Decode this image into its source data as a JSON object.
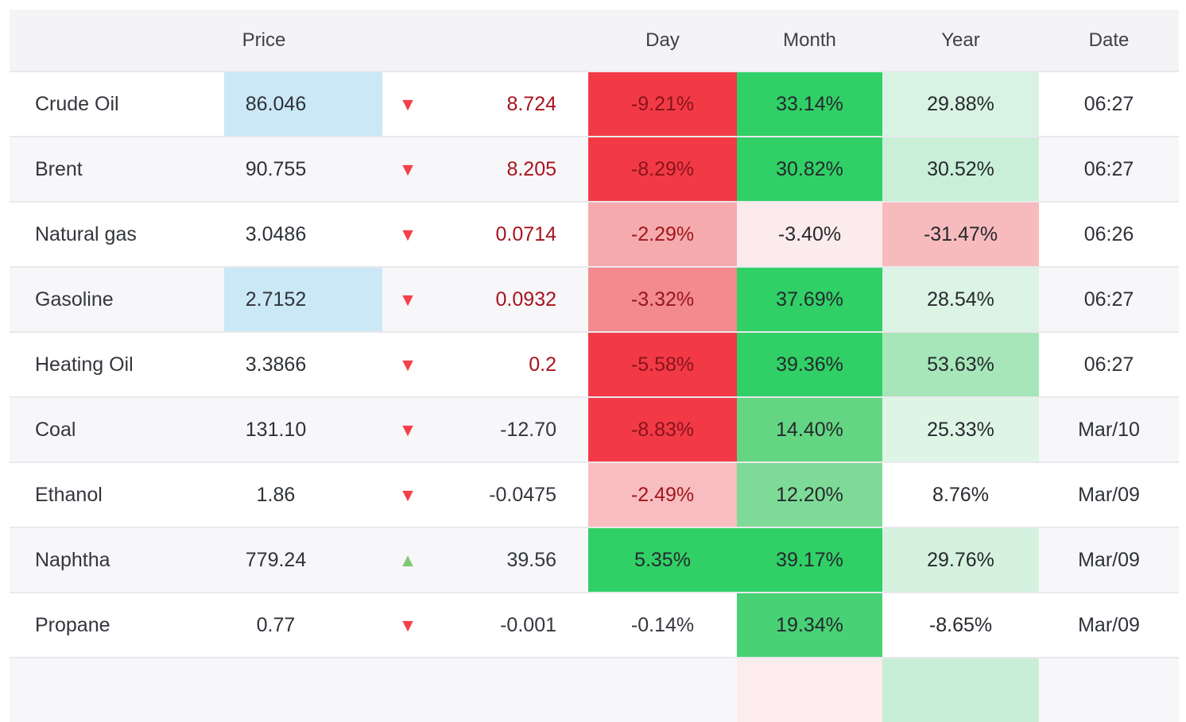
{
  "table": {
    "headers": {
      "name": "",
      "price": "Price",
      "arrow": "",
      "change": "",
      "day": "Day",
      "month": "Month",
      "year": "Year",
      "date": "Date"
    },
    "colors": {
      "header_bg": "#f4f4f6",
      "alt_row_bg": "#f7f7f9",
      "row_border": "#e9e9ec",
      "price_highlight_blue": "#cbe8f6",
      "strong_red": "#f23a46",
      "strong_green": "#30d066",
      "down_arrow": "#f4404a",
      "up_arrow": "#7fc972"
    },
    "rows": [
      {
        "name": "Crude Oil",
        "price": "86.046",
        "price_bg": "#cbe8f6",
        "arrow": "down",
        "change": "8.724",
        "change_fg": "#a8131d",
        "day": {
          "text": "-9.21%",
          "bg": "#f23a46",
          "fg": "#87141b"
        },
        "month": {
          "text": "33.14%",
          "bg": "#30d066",
          "fg": "#26292e"
        },
        "year": {
          "text": "29.88%",
          "bg": "#d9f3e2",
          "fg": "#26292e"
        },
        "date": "06:27"
      },
      {
        "name": "Brent",
        "price": "90.755",
        "price_bg": null,
        "arrow": "down",
        "change": "8.205",
        "change_fg": "#a8131d",
        "day": {
          "text": "-8.29%",
          "bg": "#f23a46",
          "fg": "#87141b"
        },
        "month": {
          "text": "30.82%",
          "bg": "#30d066",
          "fg": "#26292e"
        },
        "year": {
          "text": "30.52%",
          "bg": "#c9f0d7",
          "fg": "#26292e"
        },
        "date": "06:27"
      },
      {
        "name": "Natural gas",
        "price": "3.0486",
        "price_bg": null,
        "arrow": "down",
        "change": "0.0714",
        "change_fg": "#a8131d",
        "day": {
          "text": "-2.29%",
          "bg": "#f5abae",
          "fg": "#a21519"
        },
        "month": {
          "text": "-3.40%",
          "bg": "#fcebec",
          "fg": "#26292e"
        },
        "year": {
          "text": "-31.47%",
          "bg": "#f7bbbe",
          "fg": "#26292e"
        },
        "date": "06:26"
      },
      {
        "name": "Gasoline",
        "price": "2.7152",
        "price_bg": "#cbe8f6",
        "arrow": "down",
        "change": "0.0932",
        "change_fg": "#a8131d",
        "day": {
          "text": "-3.32%",
          "bg": "#f28a90",
          "fg": "#96151b"
        },
        "month": {
          "text": "37.69%",
          "bg": "#30d066",
          "fg": "#26292e"
        },
        "year": {
          "text": "28.54%",
          "bg": "#dcf4e4",
          "fg": "#26292e"
        },
        "date": "06:27"
      },
      {
        "name": "Heating Oil",
        "price": "3.3866",
        "price_bg": null,
        "arrow": "down",
        "change": "0.2",
        "change_fg": "#a8131d",
        "day": {
          "text": "-5.58%",
          "bg": "#f23a46",
          "fg": "#87141b"
        },
        "month": {
          "text": "39.36%",
          "bg": "#30d066",
          "fg": "#26292e"
        },
        "year": {
          "text": "53.63%",
          "bg": "#a6e6b8",
          "fg": "#26292e"
        },
        "date": "06:27"
      },
      {
        "name": "Coal",
        "price": "131.10",
        "price_bg": null,
        "arrow": "down",
        "change": "-12.70",
        "change_fg": "#33373d",
        "day": {
          "text": "-8.83%",
          "bg": "#f23a46",
          "fg": "#87141b"
        },
        "month": {
          "text": "14.40%",
          "bg": "#64d683",
          "fg": "#26292e"
        },
        "year": {
          "text": "25.33%",
          "bg": "#def5e5",
          "fg": "#26292e"
        },
        "date": "Mar/10"
      },
      {
        "name": "Ethanol",
        "price": "1.86",
        "price_bg": null,
        "arrow": "down",
        "change": "-0.0475",
        "change_fg": "#33373d",
        "day": {
          "text": "-2.49%",
          "bg": "#f8bdc0",
          "fg": "#a21519"
        },
        "month": {
          "text": "12.20%",
          "bg": "#7edb97",
          "fg": "#26292e"
        },
        "year": {
          "text": "8.76%",
          "bg": null,
          "fg": "#26292e"
        },
        "date": "Mar/09"
      },
      {
        "name": "Naphtha",
        "price": "779.24",
        "price_bg": null,
        "arrow": "up",
        "change": "39.56",
        "change_fg": "#33373d",
        "day": {
          "text": "5.35%",
          "bg": "#30d066",
          "fg": "#26292e"
        },
        "month": {
          "text": "39.17%",
          "bg": "#30d066",
          "fg": "#26292e"
        },
        "year": {
          "text": "29.76%",
          "bg": "#d5f2df",
          "fg": "#26292e"
        },
        "date": "Mar/09"
      },
      {
        "name": "Propane",
        "price": "0.77",
        "price_bg": null,
        "arrow": "down",
        "change": "-0.001",
        "change_fg": "#33373d",
        "day": {
          "text": "-0.14%",
          "bg": null,
          "fg": "#33373d"
        },
        "month": {
          "text": "19.34%",
          "bg": "#48d175",
          "fg": "#26292e"
        },
        "year": {
          "text": "-8.65%",
          "bg": null,
          "fg": "#26292e"
        },
        "date": "Mar/09"
      },
      {
        "name": "",
        "price": "",
        "price_bg": null,
        "arrow": null,
        "change": "",
        "change_fg": null,
        "day": {
          "text": "",
          "bg": null,
          "fg": null
        },
        "month": {
          "text": "",
          "bg": "#fcecee",
          "fg": null
        },
        "year": {
          "text": "",
          "bg": "#c8efd5",
          "fg": null
        },
        "date": "",
        "partial": true
      }
    ]
  }
}
